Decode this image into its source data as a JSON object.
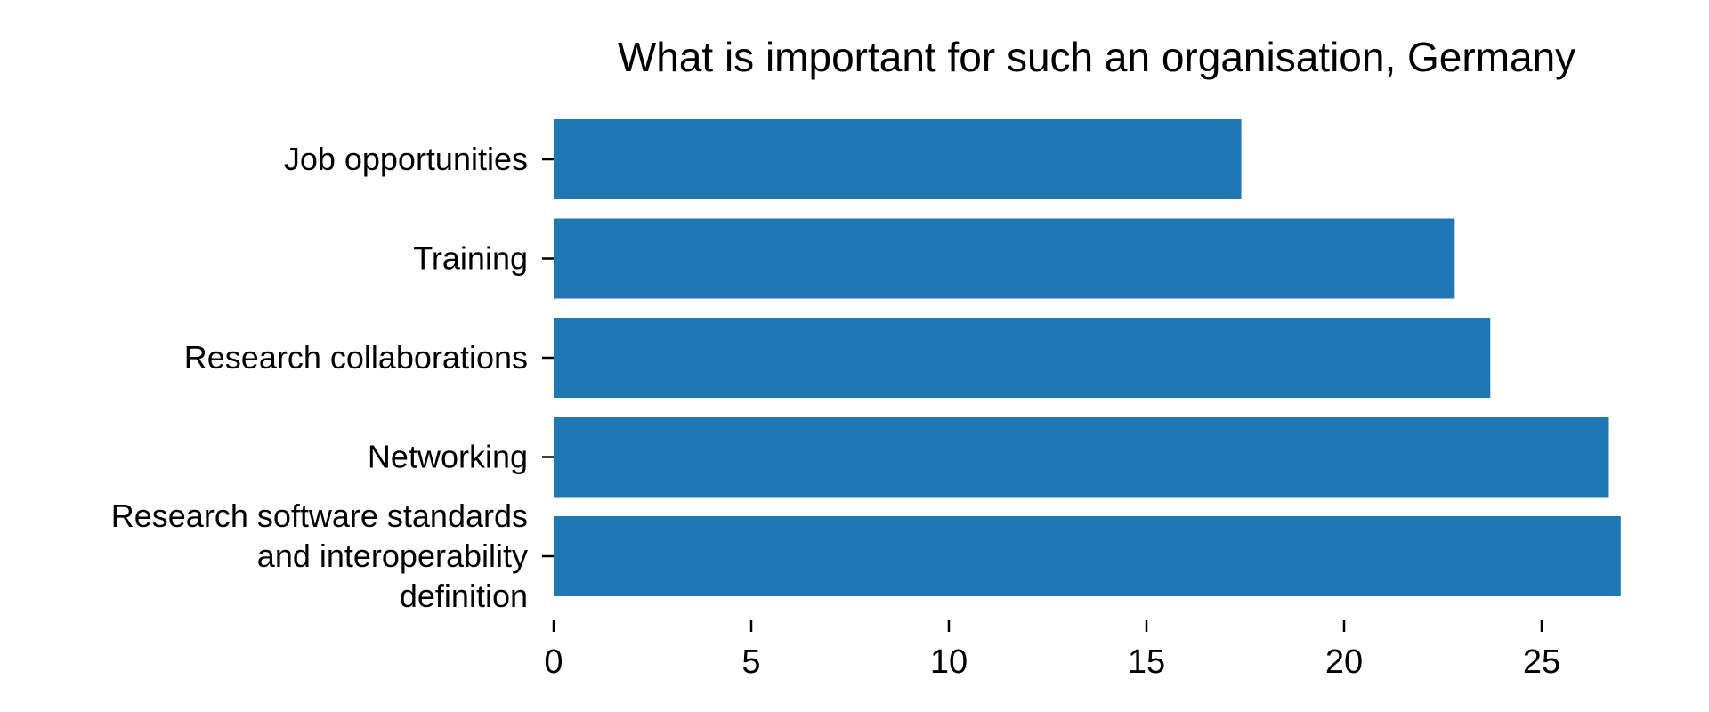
{
  "chart_data": {
    "type": "bar",
    "orientation": "horizontal",
    "title": "What is important for such an organisation, Germany",
    "xlabel": "",
    "ylabel": "",
    "categories": [
      "Job opportunities",
      "Training",
      "Research collaborations",
      "Networking",
      "Research software standards\nand interoperability\ndefinition"
    ],
    "values": [
      17.4,
      22.8,
      23.7,
      26.7,
      27.0
    ],
    "xlim": [
      0,
      27.5
    ],
    "x_ticks": [
      "0",
      "5",
      "10",
      "15",
      "20",
      "25"
    ],
    "grid": false,
    "legend": "none",
    "bar_color": "#1f77b4"
  }
}
